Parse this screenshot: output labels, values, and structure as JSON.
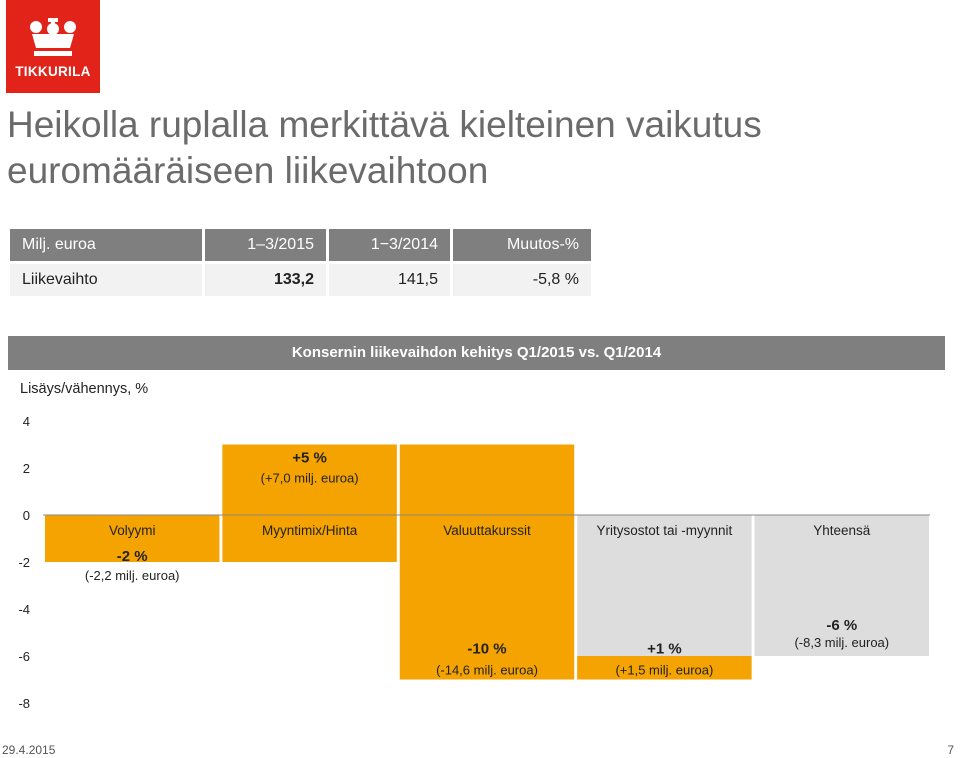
{
  "logo": {
    "text": "TIKKURILA"
  },
  "title": "Heikolla ruplalla merkittävä kielteinen vaikutus euromääräiseen liikevaihtoon",
  "kpi_table": {
    "headers": [
      "Milj. euroa",
      "1–3/2015",
      "1−3/2014",
      "Muutos-%"
    ],
    "rows": [
      {
        "label": "Liikevaihto",
        "cells": [
          "133,2",
          "141,5",
          "-5,8 %"
        ]
      }
    ]
  },
  "chart_data": {
    "type": "bar",
    "subtype": "waterfall",
    "title": "Konsernin liikevaihdon kehitys Q1/2015 vs. Q1/2014",
    "ylabel": "Lisäys/vähennys, %",
    "ylim": [
      -8,
      4
    ],
    "yticks": [
      "4",
      "2",
      "0",
      "-2",
      "-4",
      "-6",
      "-8"
    ],
    "categories": [
      "Volyymi",
      "Myyntimix/Hinta",
      "Valuuttakurssit",
      "Yritysostot tai -myynnit",
      "Yhteensä"
    ],
    "steps": [
      {
        "start": 0,
        "end": -2,
        "value_label": "-2 %",
        "sub_label": "(-2,2 milj. euroa)",
        "color": "#f5a300"
      },
      {
        "start": -2,
        "end": 3,
        "value_label": "+5 %",
        "sub_label": "(+7,0 milj. euroa)",
        "color": "#f5a300"
      },
      {
        "start": 3,
        "end": -7,
        "value_label": "-10 %",
        "sub_label": "(-14,6 milj. euroa)",
        "color": "#f5a300"
      },
      {
        "start": -7,
        "end": -6,
        "value_label": "+1 %",
        "sub_label": "(+1,5 milj. euroa)",
        "color": "#f5a300"
      },
      {
        "start": 0,
        "end": -6,
        "value_label": "-6 %",
        "sub_label": "(-8,3 milj. euroa)",
        "color": "#dddddd"
      }
    ],
    "colors": {
      "bar": "#f5a300",
      "range": "#dddddd",
      "header": "#7f7f7f"
    },
    "grid": false
  },
  "footer": {
    "date": "29.4.2015",
    "page": "7"
  }
}
